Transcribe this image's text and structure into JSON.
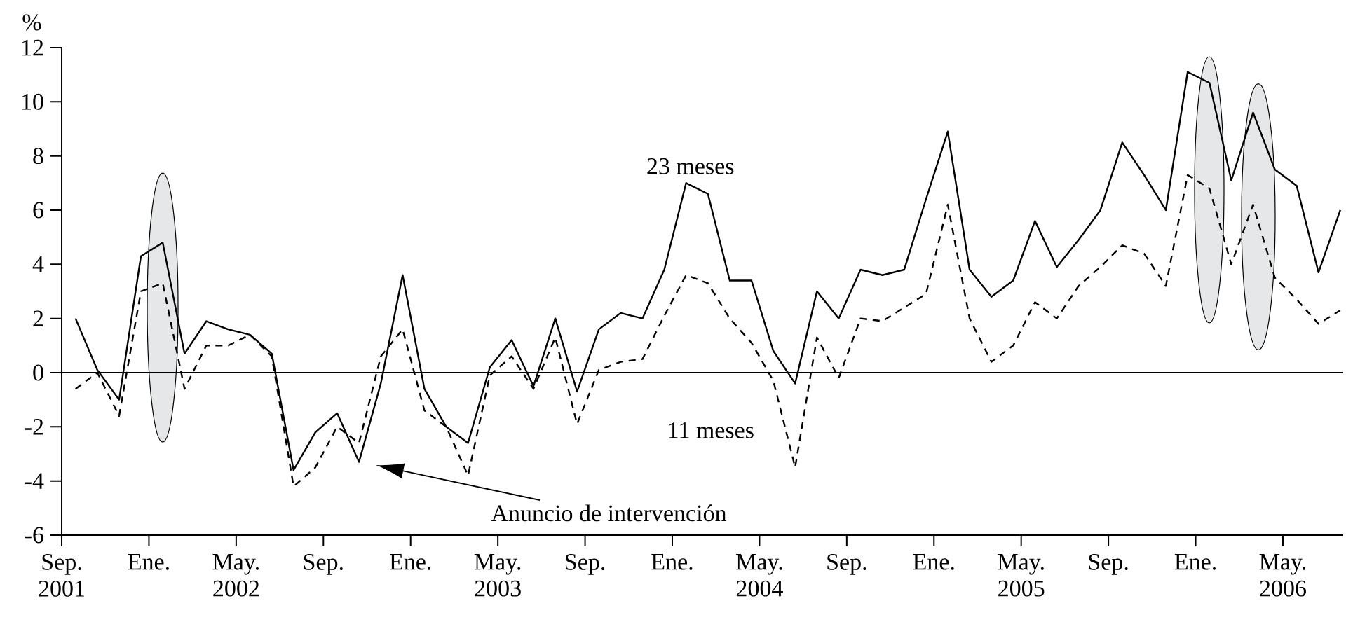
{
  "chart_data": {
    "type": "line",
    "ylabel": "%",
    "x": [
      "2001-09-20",
      "2001-10-20",
      "2001-11-20",
      "2001-12-20",
      "2002-01-20",
      "2002-02-20",
      "2002-03-20",
      "2002-04-20",
      "2002-05-20",
      "2002-06-20",
      "2002-07-20",
      "2002-08-20",
      "2002-09-20",
      "2002-10-20",
      "2002-11-20",
      "2002-12-20",
      "2003-01-20",
      "2003-02-20",
      "2003-03-20",
      "2003-04-20",
      "2003-05-20",
      "2003-06-20",
      "2003-07-20",
      "2003-08-20",
      "2003-09-20",
      "2003-10-20",
      "2003-11-20",
      "2003-12-20",
      "2004-01-20",
      "2004-02-20",
      "2004-03-20",
      "2004-04-20",
      "2004-05-20",
      "2004-06-20",
      "2004-07-20",
      "2004-08-20",
      "2004-09-20",
      "2004-10-20",
      "2004-11-20",
      "2004-12-20",
      "2005-01-20",
      "2005-02-20",
      "2005-03-20",
      "2005-04-20",
      "2005-05-20",
      "2005-06-20",
      "2005-07-20",
      "2005-08-20",
      "2005-09-20",
      "2005-10-20",
      "2005-11-20",
      "2005-12-20",
      "2006-01-20",
      "2006-02-20",
      "2006-03-20",
      "2006-04-20",
      "2006-05-20",
      "2006-06-20",
      "2006-07-20"
    ],
    "series": [
      {
        "name": "23 meses",
        "color": "#000000",
        "line_style": "solid",
        "values": [
          2.0,
          0.1,
          -1.0,
          4.3,
          4.8,
          0.7,
          1.9,
          1.6,
          1.4,
          0.7,
          -3.6,
          -2.2,
          -1.5,
          -3.3,
          -0.4,
          3.6,
          -0.6,
          -2.0,
          -2.6,
          0.2,
          1.2,
          -0.5,
          2.0,
          -0.7,
          1.6,
          2.2,
          2.0,
          3.8,
          7.0,
          6.6,
          3.4,
          3.4,
          0.8,
          -0.4,
          3.0,
          2.0,
          3.8,
          3.6,
          3.8,
          6.4,
          8.9,
          3.8,
          2.8,
          3.4,
          5.6,
          3.9,
          4.9,
          6.0,
          8.5,
          7.3,
          6.0,
          11.1,
          10.7,
          7.1,
          9.6,
          7.5,
          6.9,
          3.7,
          6.0
        ]
      },
      {
        "name": "11 meses",
        "color": "#000000",
        "line_style": "dashed",
        "values": [
          -0.6,
          0.0,
          -1.6,
          3.0,
          3.3,
          -0.6,
          1.0,
          1.0,
          1.4,
          0.6,
          -4.2,
          -3.5,
          -2.0,
          -2.6,
          0.6,
          1.6,
          -1.4,
          -2.0,
          -3.8,
          -0.1,
          0.6,
          -0.6,
          1.3,
          -1.9,
          0.1,
          0.4,
          0.5,
          2.1,
          3.6,
          3.3,
          2.0,
          1.1,
          -0.3,
          -3.5,
          1.3,
          -0.2,
          2.0,
          1.9,
          2.4,
          2.9,
          6.2,
          2.0,
          0.4,
          1.0,
          2.6,
          2.0,
          3.2,
          3.9,
          4.7,
          4.4,
          3.2,
          7.3,
          6.8,
          4.0,
          6.2,
          3.5,
          2.7,
          1.8,
          2.3
        ]
      }
    ],
    "xlim": [
      "2001-09-01",
      "2006-07-24"
    ],
    "xticks": [
      {
        "value": "2001-09",
        "label": "Sep. 2001"
      },
      {
        "value": "2002-01",
        "label": "Ene."
      },
      {
        "value": "2002-05",
        "label": "May. 2002"
      },
      {
        "value": "2002-09",
        "label": "Sep."
      },
      {
        "value": "2003-01",
        "label": "Ene."
      },
      {
        "value": "2003-05",
        "label": "May. 2003"
      },
      {
        "value": "2003-09",
        "label": "Sep."
      },
      {
        "value": "2004-01",
        "label": "Ene."
      },
      {
        "value": "2004-05",
        "label": "May. 2004"
      },
      {
        "value": "2004-09",
        "label": "Sep."
      },
      {
        "value": "2005-01",
        "label": "Ene."
      },
      {
        "value": "2005-05",
        "label": "May. 2005"
      },
      {
        "value": "2005-09",
        "label": "Sep."
      },
      {
        "value": "2006-01",
        "label": "Ene."
      },
      {
        "value": "2006-05",
        "label": "May. 2006"
      }
    ],
    "ylim": [
      -6,
      12
    ],
    "yticks": [
      -6,
      -4,
      -2,
      0,
      2,
      4,
      6,
      8,
      10,
      12
    ],
    "ref_lines": [
      {
        "axis": "y",
        "value": 0,
        "color": "#000000"
      }
    ],
    "annotations": [
      "Anuncio de intervención"
    ],
    "marker": "none",
    "grid": false
  }
}
